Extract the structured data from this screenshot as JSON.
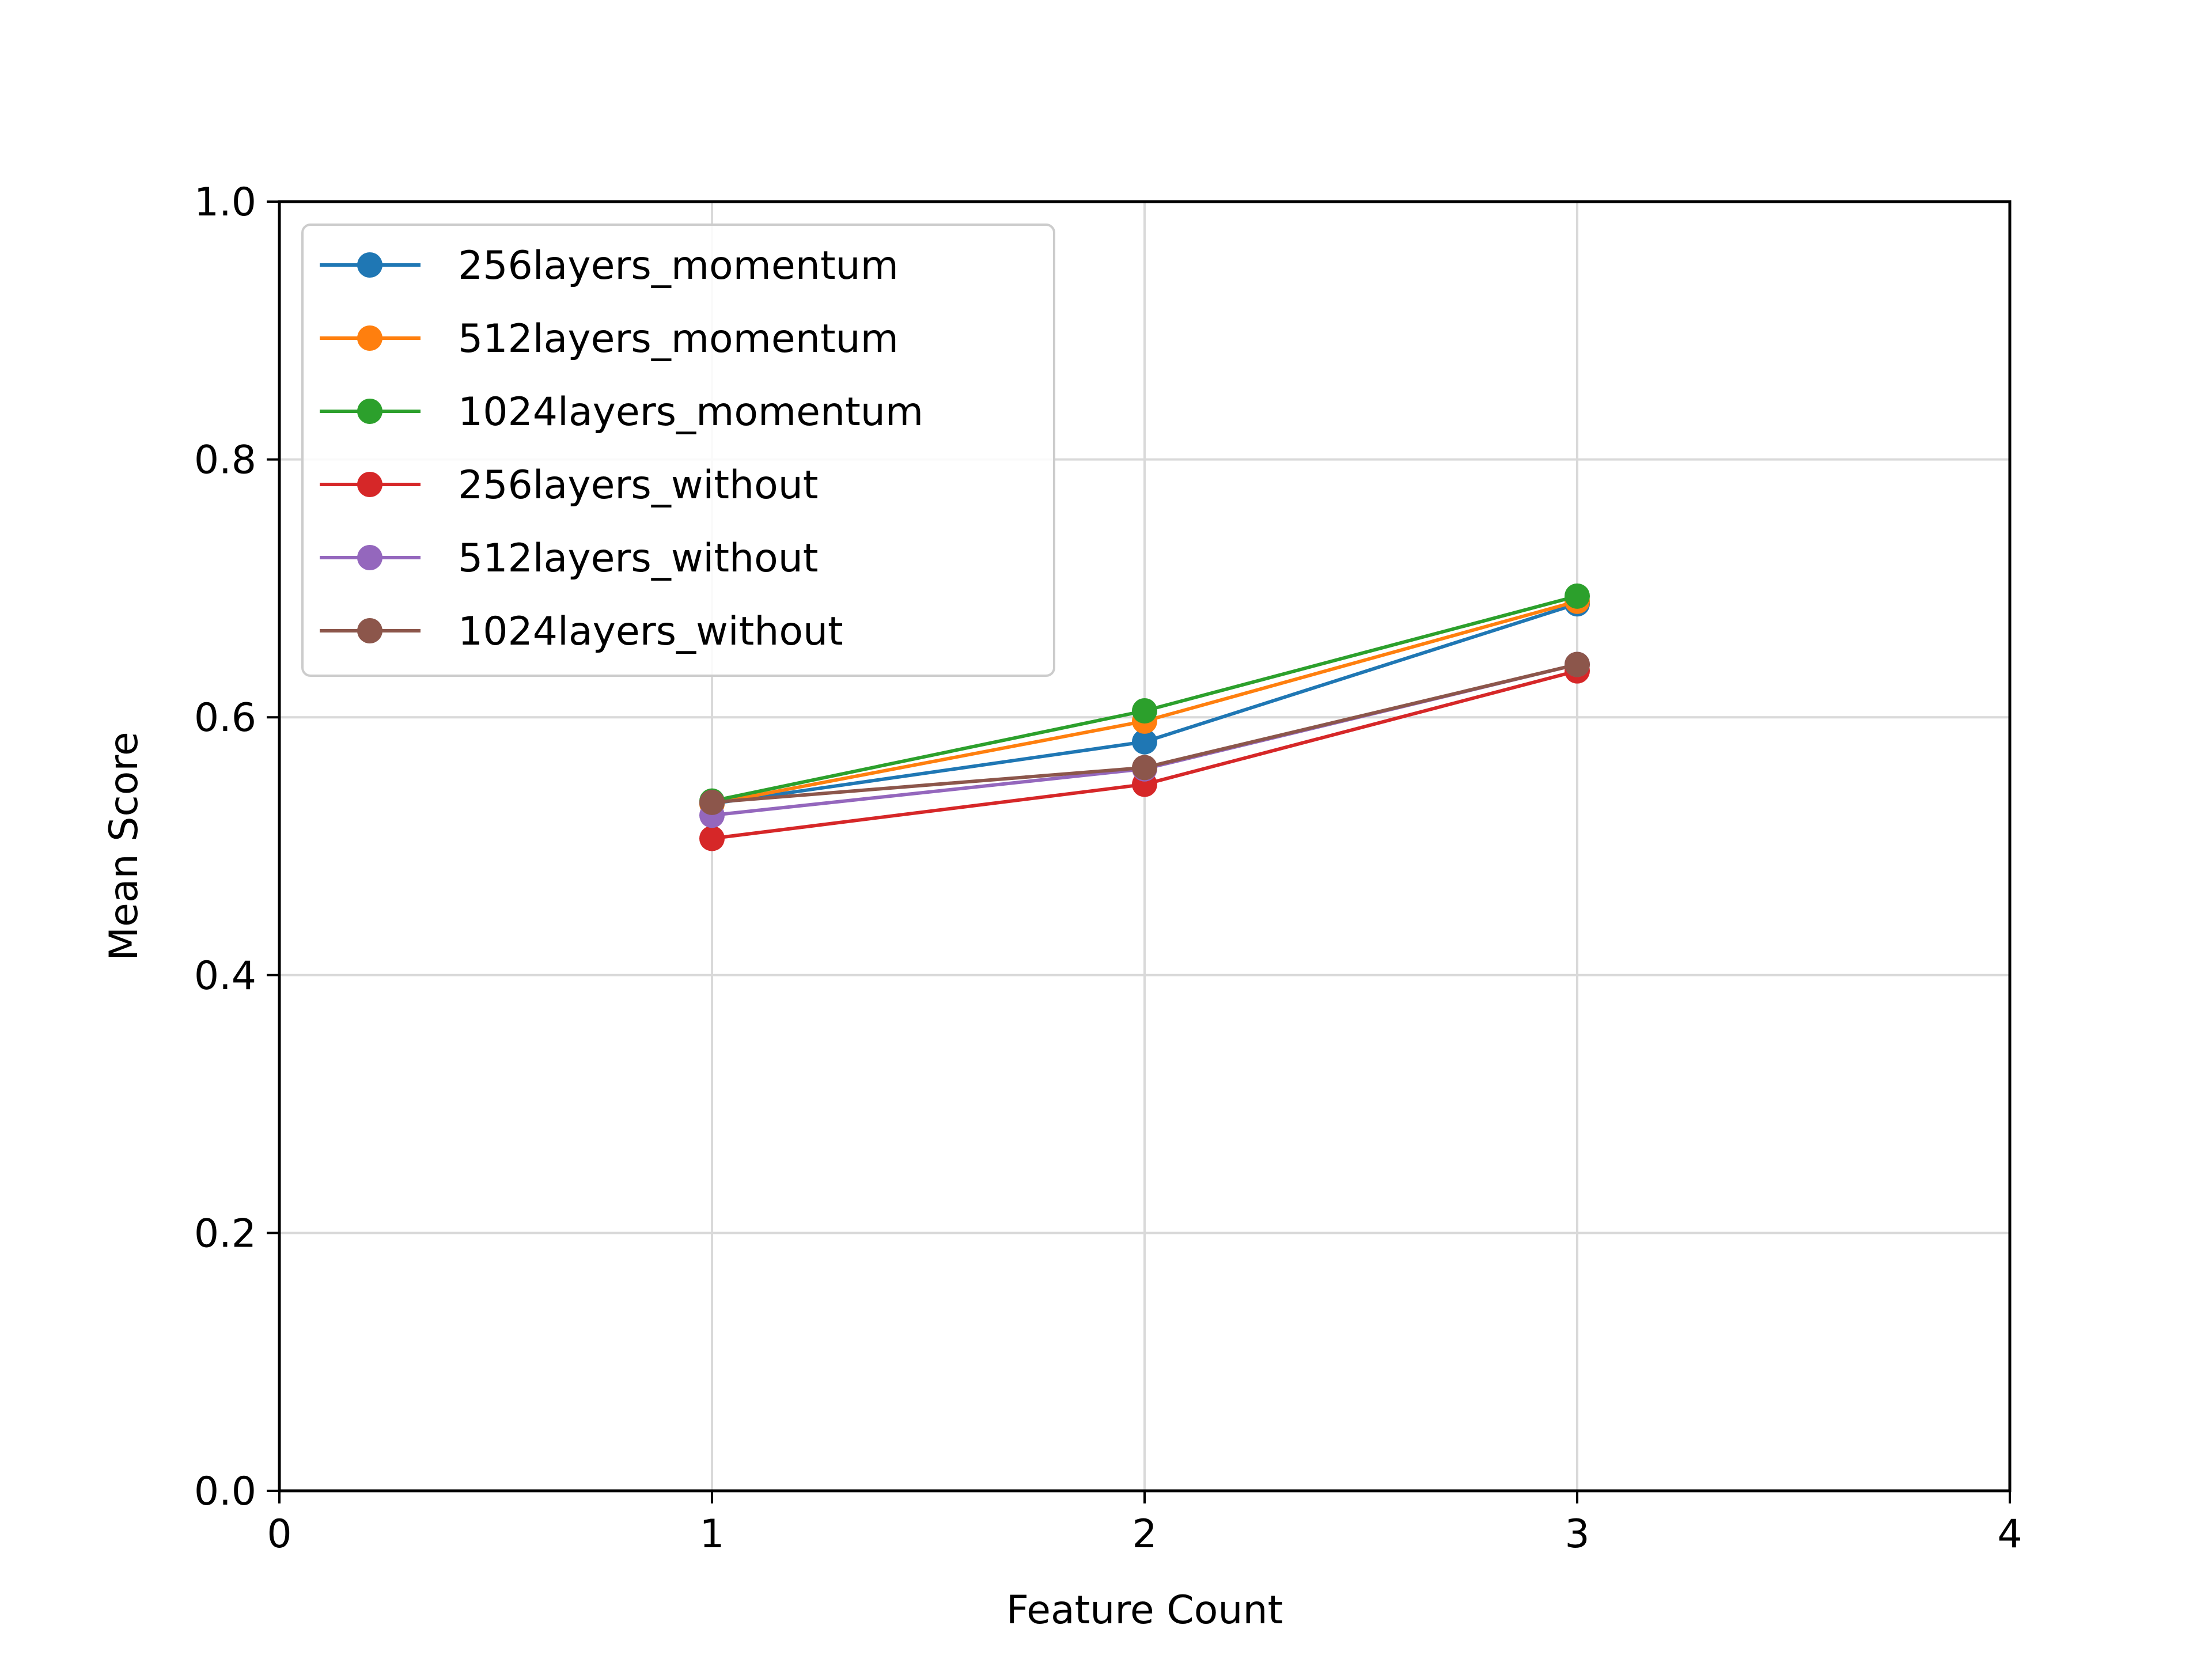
{
  "chart_data": {
    "type": "line",
    "title": "",
    "xlabel": "Feature Count",
    "ylabel": "Mean Score",
    "xlim": [
      0,
      4
    ],
    "ylim": [
      0.0,
      1.0
    ],
    "xticks": [
      "0",
      "1",
      "2",
      "3",
      "4"
    ],
    "yticks": [
      "0.0",
      "0.2",
      "0.4",
      "0.6",
      "0.8",
      "1.0"
    ],
    "grid": true,
    "legend_position": "top-left",
    "x": [
      1,
      2,
      3
    ],
    "series": [
      {
        "name": "256layers_momentum",
        "color": "#1f77b4",
        "values": [
          0.533,
          0.581,
          0.688
        ]
      },
      {
        "name": "512layers_momentum",
        "color": "#ff7f0e",
        "values": [
          0.533,
          0.597,
          0.69
        ]
      },
      {
        "name": "1024layers_momentum",
        "color": "#2ca02c",
        "values": [
          0.535,
          0.605,
          0.694
        ]
      },
      {
        "name": "256layers_without",
        "color": "#d62728",
        "values": [
          0.506,
          0.548,
          0.636
        ]
      },
      {
        "name": "512layers_without",
        "color": "#9467bd",
        "values": [
          0.524,
          0.56,
          0.641
        ]
      },
      {
        "name": "1024layers_without",
        "color": "#8c564b",
        "values": [
          0.534,
          0.561,
          0.641
        ]
      }
    ]
  }
}
